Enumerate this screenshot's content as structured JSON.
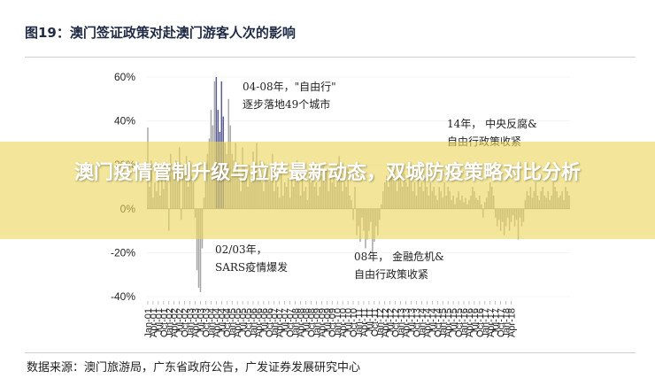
{
  "title": "图19：澳门签证政策对赴澳门游客人次的影响",
  "source": "数据来源：澳门旅游局，广东省政府公告，广发证券发展研究中心",
  "headline": "澳门疫情管制升级与拉萨最新动态，双城防疫策略对比分析",
  "colors": {
    "bar": "#a6a6a6",
    "highlight": "#5b5d99",
    "banner": "#ecd65c"
  },
  "chart_data": {
    "type": "bar",
    "title": "澳门签证政策对赴澳门游客人次的影响",
    "ylim": [
      -40,
      60
    ],
    "yticks": [
      "60%",
      "40%",
      "20%",
      "0%",
      "-20%",
      "-40%"
    ],
    "ytick_values": [
      60,
      40,
      20,
      0,
      -20,
      -40
    ],
    "xtick_labels": [
      "Jan-01",
      "Apr-01",
      "Jul-01",
      "Oct-01",
      "Jan-02",
      "Apr-02",
      "Jul-02",
      "Oct-02",
      "Jan-03",
      "Apr-03",
      "Jul-03",
      "Oct-03",
      "Jan-04",
      "Apr-04",
      "Jul-04",
      "Oct-04",
      "Jan-05",
      "Apr-05",
      "Jul-05",
      "Oct-05",
      "Jan-06",
      "Apr-06",
      "Jul-06",
      "Oct-06",
      "Jan-07",
      "Apr-07",
      "Jul-07",
      "Oct-07",
      "Jan-08",
      "Apr-08",
      "Jul-08",
      "Oct-08",
      "Jan-09",
      "Apr-09",
      "Jul-09",
      "Oct-09",
      "Jan-10",
      "Apr-10",
      "Jul-10",
      "Oct-10",
      "Jan-11",
      "Apr-11",
      "Jul-11",
      "Oct-11",
      "Jan-12",
      "Apr-12",
      "Jul-12",
      "Oct-12",
      "Jan-13",
      "Apr-13",
      "Jul-13",
      "Oct-13",
      "Jan-14",
      "Apr-14",
      "Jul-14",
      "Oct-14",
      "Jan-15",
      "Apr-15",
      "Jul-15",
      "Oct-15",
      "Jan-16",
      "Apr-16",
      "Jul-16",
      "Oct-16",
      "Jan-17",
      "Apr-17",
      "Jul-17",
      "Oct-17",
      "Jan-18",
      "Apr-18"
    ],
    "series": [
      {
        "start": "Jan-01",
        "frequency": "monthly",
        "values": [
          37,
          10,
          22,
          5,
          12,
          8,
          18,
          6,
          14,
          9,
          20,
          12,
          -10,
          25,
          18,
          15,
          22,
          12,
          28,
          -5,
          20,
          15,
          24,
          10,
          22,
          15,
          12,
          -4,
          -28,
          -36,
          -38,
          -18,
          5,
          12,
          25,
          32,
          45,
          38,
          58,
          60,
          45,
          35,
          58,
          42,
          30,
          25,
          50,
          38,
          25,
          22,
          30,
          20,
          15,
          8,
          28,
          20,
          15,
          10,
          20,
          12,
          26,
          18,
          30,
          15,
          22,
          12,
          8,
          15,
          20,
          12,
          18,
          25,
          8,
          14,
          10,
          5,
          16,
          6,
          12,
          10,
          14,
          5,
          20,
          10,
          15,
          22,
          12,
          6,
          14,
          8,
          10,
          4,
          18,
          12,
          20,
          10,
          12,
          6,
          10,
          15,
          20,
          12,
          18,
          8,
          14,
          12,
          16,
          10,
          20,
          24,
          16,
          8,
          12,
          10,
          18,
          6,
          4,
          -5,
          10,
          -12,
          -8,
          -15,
          -4,
          -10,
          -18,
          -14,
          -10,
          -6,
          -20,
          -15,
          -8,
          -12,
          -5,
          2,
          8,
          12,
          15,
          10,
          20,
          16,
          18,
          12,
          8,
          14,
          20,
          10,
          16,
          12,
          10,
          15,
          18,
          8,
          12,
          6,
          15,
          10,
          12,
          8,
          14,
          10,
          6,
          12,
          8,
          10,
          6,
          4,
          10,
          8,
          5,
          12,
          6,
          10,
          8,
          4,
          6,
          2,
          5,
          8,
          4,
          6,
          3,
          5,
          2,
          4,
          6,
          10,
          8,
          5,
          4,
          6,
          2,
          -4,
          3,
          5,
          8,
          12,
          10,
          6,
          -4,
          -8,
          -5,
          -10,
          -6,
          -12,
          -8,
          -4,
          -10,
          -6,
          -3,
          -8,
          -5,
          -14,
          -4,
          -8,
          -6,
          4,
          8,
          6,
          10,
          5,
          8,
          12,
          6,
          4,
          8,
          10,
          6,
          5,
          8,
          4,
          6,
          12,
          10,
          8,
          5,
          6,
          8,
          4,
          10,
          8,
          6
        ],
        "highlight_ranges": [
          [
            "Apr-04",
            "Aug-04"
          ]
        ]
      }
    ],
    "annotations": [
      {
        "line1": "04-08年，\"自由行\"",
        "line2": "逐步落地49个城市"
      },
      {
        "line1": "02/03年，",
        "line2": "SARS疫情爆发"
      },
      {
        "line1": "08年，  金融危机&",
        "line2": "自由行政策收紧"
      },
      {
        "line1": "14年，  中央反腐&",
        "line2": "自由行政策收紧"
      }
    ]
  }
}
